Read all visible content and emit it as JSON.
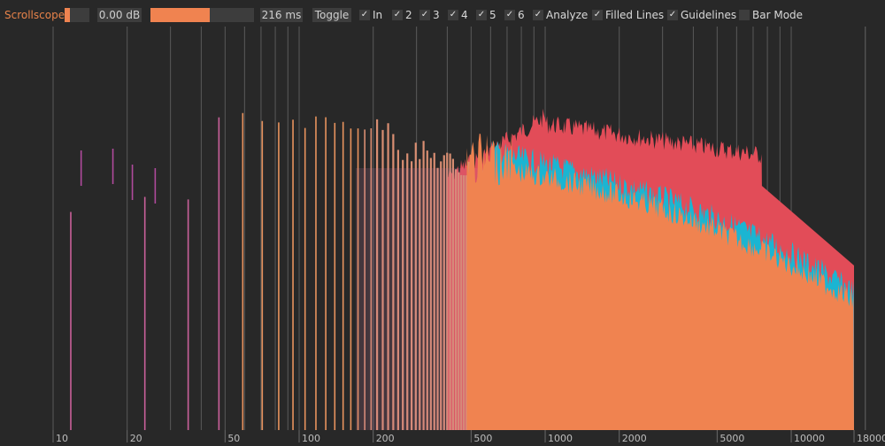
{
  "toolbar": {
    "title": "Scrollscope",
    "gain": "0.00 dB",
    "gain_fill": 0.2,
    "time_fill": 0.57,
    "time": "216 ms",
    "toggle": "Toggle",
    "checks": [
      {
        "label": "In",
        "checked": true
      },
      {
        "label": "2",
        "checked": true
      },
      {
        "label": "3",
        "checked": true
      },
      {
        "label": "4",
        "checked": true
      },
      {
        "label": "5",
        "checked": true
      },
      {
        "label": "6",
        "checked": true
      },
      {
        "label": "Analyze",
        "checked": true
      },
      {
        "label": "Filled Lines",
        "checked": true
      },
      {
        "label": "Guidelines",
        "checked": true
      },
      {
        "label": "Bar Mode",
        "checked": false
      }
    ]
  },
  "axis": {
    "labels": [
      "10",
      "20",
      "50",
      "100",
      "200",
      "500",
      "1000",
      "2000",
      "5000",
      "10000",
      "18000"
    ],
    "freqs": [
      10,
      20,
      50,
      100,
      200,
      500,
      1000,
      2000,
      5000,
      10000,
      18000
    ]
  },
  "colors": {
    "background": "#282828",
    "accent": "#f08350",
    "red": "#e24c58",
    "cyan": "#1bb5d2",
    "purple": "#b04a9c",
    "gridline": "#5a5a5a"
  },
  "icons": {
    "check": "check-icon"
  }
}
